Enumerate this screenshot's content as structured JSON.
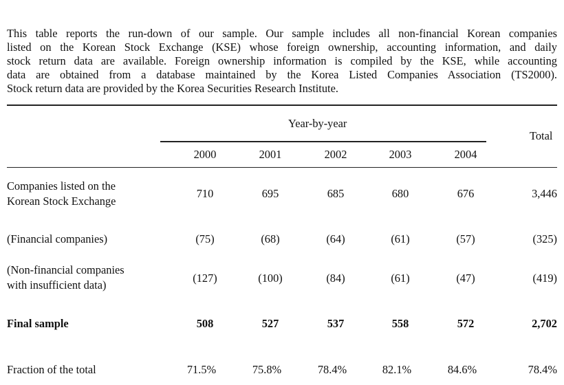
{
  "caption_lines": [
    "This table reports the run-down of our sample. Our sample includes all non-financial Korean companies",
    "listed on the Korean Stock Exchange (KSE) whose foreign ownership, accounting information, and daily",
    "stock return data are available. Foreign ownership information is compiled by the KSE, while accounting",
    "data are obtained from a database maintained by the Korea Listed Companies Association (TS2000).",
    "Stock return data are provided by the Korea Securities Research Institute."
  ],
  "table": {
    "group_header": "Year-by-year",
    "total_header": "Total",
    "years": [
      "2000",
      "2001",
      "2002",
      "2003",
      "2004"
    ],
    "rows": [
      {
        "label_lines": [
          "Companies listed on the",
          "Korean Stock Exchange"
        ],
        "values": [
          "710",
          "695",
          "685",
          "680",
          "676"
        ],
        "total": "3,446"
      },
      {
        "label_lines": [
          "(Financial companies)"
        ],
        "values": [
          "(75)",
          "(68)",
          "(64)",
          "(61)",
          "(57)"
        ],
        "total": "(325)"
      },
      {
        "label_lines": [
          "(Non-financial companies",
          "with insufficient data)"
        ],
        "values": [
          "(127)",
          "(100)",
          "(84)",
          "(61)",
          "(47)"
        ],
        "total": "(419)"
      },
      {
        "label_lines": [
          "Final sample"
        ],
        "values": [
          "508",
          "527",
          "537",
          "558",
          "572"
        ],
        "total": "2,702"
      },
      {
        "label_lines": [
          "Fraction of the total"
        ],
        "values": [
          "71.5%",
          "75.8%",
          "78.4%",
          "82.1%",
          "84.6%"
        ],
        "total": "78.4%"
      }
    ]
  }
}
